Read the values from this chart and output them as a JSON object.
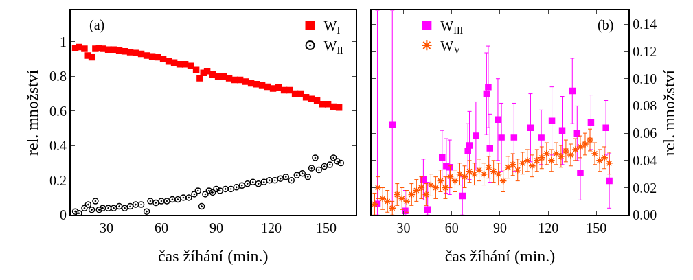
{
  "chart_data": [
    {
      "type": "scatter",
      "xlabel": "čas žíhání (min.)",
      "ylabel": "rel. množství",
      "annotations": [
        "(a)"
      ],
      "legend": "top right",
      "xlim": [
        10.5,
        166
      ],
      "xticks": [
        30,
        60,
        90,
        120,
        150
      ],
      "ylim": [
        0,
        1.18
      ],
      "yticks": [
        0,
        0.2,
        0.4,
        0.6,
        0.8,
        1
      ],
      "series": [
        {
          "name": "W$_{I}$",
          "color": "#ff0000",
          "marker": "square",
          "x": [
            13,
            15,
            18,
            20,
            22,
            24,
            26,
            28,
            31,
            34,
            37,
            40,
            43,
            46,
            49,
            52,
            55,
            58,
            61,
            64,
            67,
            70,
            73,
            76,
            79,
            81,
            83,
            85,
            88,
            91,
            94,
            97,
            100,
            103,
            106,
            109,
            112,
            115,
            118,
            121,
            124,
            127,
            130,
            133,
            136,
            139,
            142,
            145,
            148,
            151,
            154,
            157
          ],
          "values": [
            0.965,
            0.97,
            0.96,
            0.92,
            0.91,
            0.96,
            0.965,
            0.96,
            0.955,
            0.955,
            0.95,
            0.945,
            0.94,
            0.935,
            0.93,
            0.92,
            0.915,
            0.91,
            0.9,
            0.89,
            0.88,
            0.87,
            0.87,
            0.86,
            0.84,
            0.79,
            0.82,
            0.83,
            0.81,
            0.8,
            0.8,
            0.79,
            0.78,
            0.78,
            0.77,
            0.76,
            0.755,
            0.75,
            0.74,
            0.73,
            0.735,
            0.72,
            0.72,
            0.7,
            0.7,
            0.68,
            0.67,
            0.66,
            0.64,
            0.64,
            0.625,
            0.62
          ]
        },
        {
          "name": "W$_{II}$",
          "color": "#000000",
          "marker": "circle",
          "x": [
            13,
            15,
            18,
            20,
            22,
            24,
            26,
            28,
            31,
            34,
            37,
            40,
            43,
            46,
            49,
            52,
            54,
            57,
            60,
            63,
            66,
            69,
            72,
            75,
            78,
            80,
            82,
            84,
            86,
            88,
            90,
            92,
            95,
            98,
            101,
            104,
            107,
            110,
            113,
            116,
            119,
            122,
            125,
            128,
            131,
            134,
            137,
            140,
            142,
            144,
            146,
            149,
            152,
            154,
            156,
            158
          ],
          "values": [
            0.02,
            0.01,
            0.04,
            0.06,
            0.03,
            0.08,
            0.03,
            0.04,
            0.04,
            0.04,
            0.05,
            0.04,
            0.05,
            0.06,
            0.06,
            0.02,
            0.08,
            0.07,
            0.08,
            0.08,
            0.09,
            0.09,
            0.1,
            0.1,
            0.12,
            0.14,
            0.05,
            0.12,
            0.14,
            0.13,
            0.15,
            0.14,
            0.15,
            0.15,
            0.16,
            0.17,
            0.18,
            0.19,
            0.18,
            0.19,
            0.2,
            0.2,
            0.21,
            0.22,
            0.2,
            0.23,
            0.24,
            0.22,
            0.27,
            0.33,
            0.26,
            0.28,
            0.29,
            0.33,
            0.31,
            0.3
          ]
        }
      ]
    },
    {
      "type": "scatter",
      "xlabel": "čas žíhání (min.)",
      "y2label": "rel. množství",
      "annotations": [
        "(b)"
      ],
      "legend": "top left",
      "xlim": [
        10,
        170
      ],
      "xticks": [
        30,
        60,
        90,
        120,
        150
      ],
      "y2lim": [
        0,
        0.15
      ],
      "y2ticks": [
        {
          "value": 0,
          "label": "0.00"
        },
        0.02,
        0.04,
        0.06,
        0.08,
        {
          "value": 0.1,
          "label": "0.10"
        },
        0.12,
        0.14
      ],
      "series": [
        {
          "name": "W$_{III}$",
          "color": "#ff00ff",
          "marker": "square",
          "axis": "y2",
          "x": [
            13.7,
            23,
            31,
            42.3,
            45,
            54,
            56.6,
            58.7,
            66.6,
            70,
            71,
            75,
            81.6,
            82.7,
            83.7,
            88.7,
            90.9,
            98.7,
            109,
            115.7,
            122.3,
            128.7,
            135,
            138,
            140,
            146.6,
            155.9,
            158
          ],
          "values": [
            0.008,
            0.066,
            0.003,
            0.026,
            0.004,
            0.042,
            0.036,
            0.035,
            0.014,
            0.047,
            0.051,
            0.058,
            0.089,
            0.094,
            0.049,
            0.07,
            0.057,
            0.057,
            0.064,
            0.057,
            0.069,
            0.062,
            0.091,
            0.06,
            0.031,
            0.068,
            0.064,
            0.025
          ],
          "errors": [
            [
              0,
              0.15
            ],
            [
              0.006,
              0.15
            ],
            [
              0,
              0.018
            ],
            0.015,
            [
              0,
              0.024
            ],
            0.02,
            0.02,
            0.02,
            0.014,
            0.02,
            0.025,
            0.025,
            0.03,
            0.03,
            0.025,
            0.03,
            0.025,
            0.025,
            0.025,
            0.02,
            0.025,
            0.025,
            0.024,
            0.02,
            0.02,
            0.02,
            0.02,
            0.02
          ]
        },
        {
          "name": "W$_{V}$",
          "color": "#ff5500",
          "marker": "cross",
          "axis": "y2",
          "x": [
            12,
            14,
            17,
            20,
            23,
            26,
            29,
            32,
            35,
            38,
            41,
            44,
            47,
            50,
            53,
            56,
            59,
            62,
            65,
            68,
            71,
            74,
            77,
            80,
            83,
            86,
            89,
            92,
            95,
            98,
            101,
            104,
            107,
            110,
            113,
            116,
            119,
            122,
            125,
            128,
            131,
            134,
            137,
            140,
            143,
            146,
            149,
            152,
            155,
            158
          ],
          "values": [
            0.008,
            0.02,
            0.012,
            0.01,
            0.005,
            0.015,
            0.012,
            0.01,
            0.015,
            0.018,
            0.02,
            0.015,
            0.022,
            0.02,
            0.025,
            0.02,
            0.028,
            0.025,
            0.03,
            0.028,
            0.032,
            0.03,
            0.033,
            0.03,
            0.035,
            0.032,
            0.03,
            0.025,
            0.035,
            0.037,
            0.033,
            0.038,
            0.04,
            0.036,
            0.04,
            0.042,
            0.045,
            0.04,
            0.045,
            0.043,
            0.047,
            0.044,
            0.048,
            0.05,
            0.052,
            0.055,
            0.045,
            0.04,
            0.042,
            0.038
          ],
          "errors": [
            0.008,
            0.008,
            0.008,
            0.008,
            0.005,
            0.008,
            0.008,
            0.008,
            0.008,
            0.008,
            0.008,
            0.008,
            0.008,
            0.008,
            0.008,
            0.008,
            0.008,
            0.008,
            0.008,
            0.008,
            0.008,
            0.008,
            0.008,
            0.008,
            0.008,
            0.008,
            0.008,
            0.008,
            0.008,
            0.008,
            0.008,
            0.008,
            0.008,
            0.008,
            0.008,
            0.008,
            0.008,
            0.008,
            0.008,
            0.008,
            0.008,
            0.008,
            0.008,
            0.008,
            0.008,
            0.008,
            0.008,
            0.008,
            0.008,
            0.008
          ]
        }
      ]
    }
  ]
}
